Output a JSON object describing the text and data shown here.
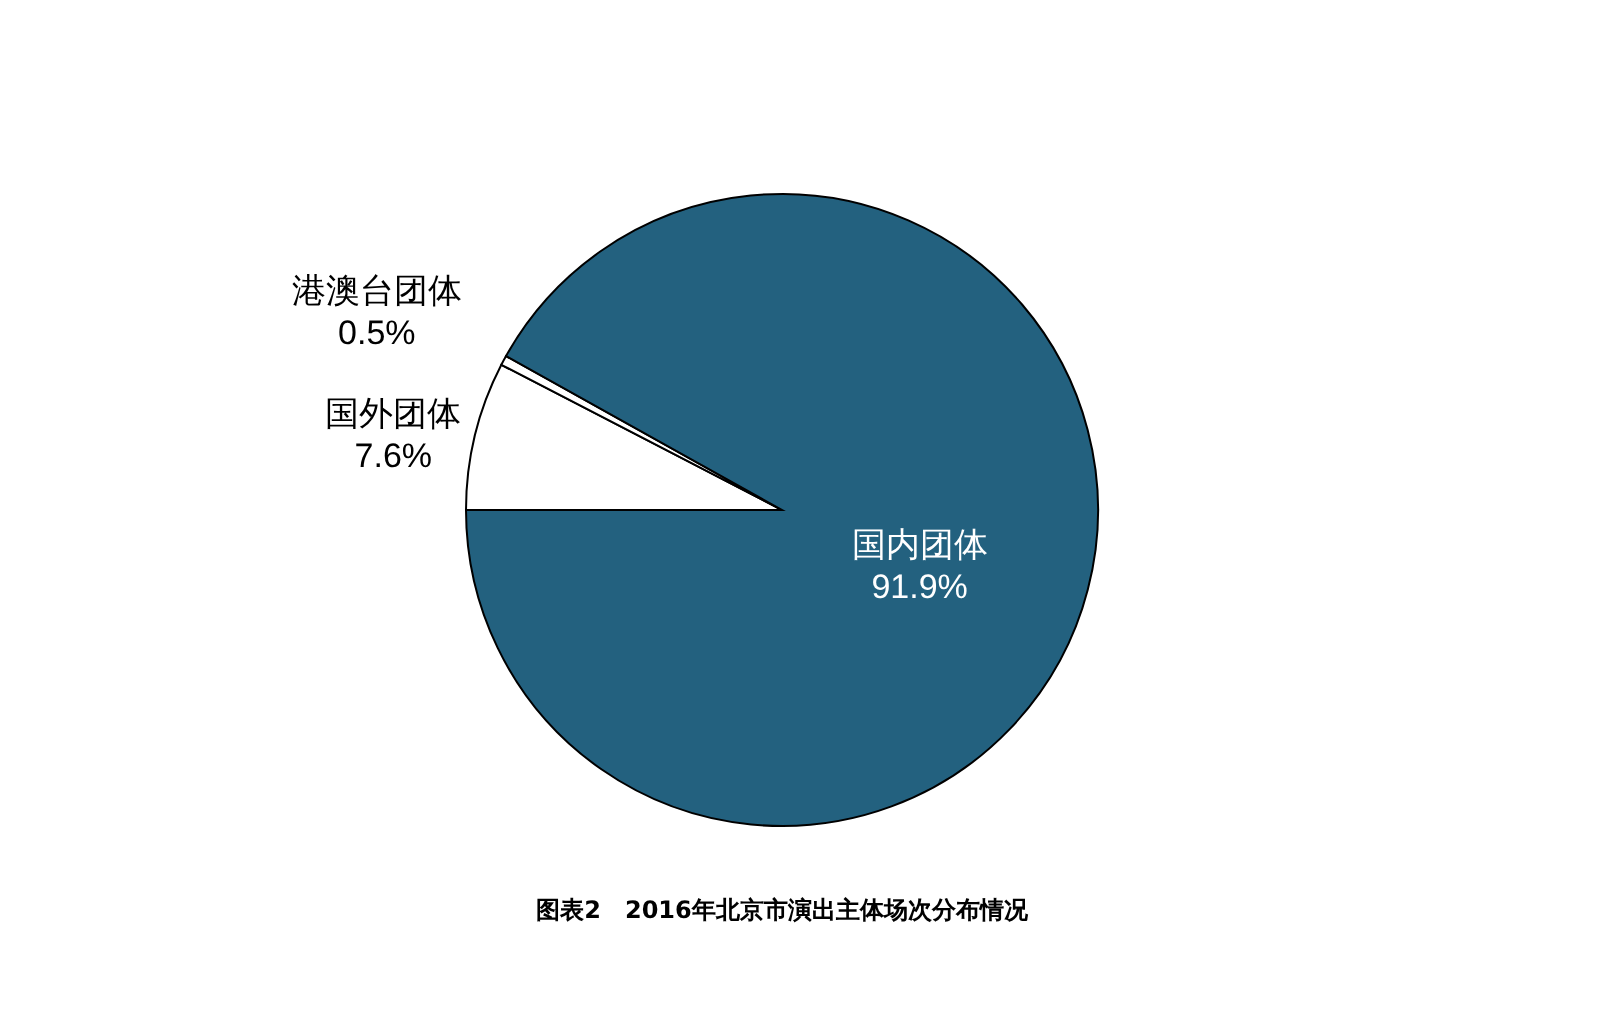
{
  "chart_data": {
    "type": "pie",
    "title": "图表2　2016年北京市演出主体场次分布情况",
    "categories": [
      "国外团体",
      "港澳台团体",
      "国内团体"
    ],
    "values": [
      7.6,
      0.5,
      91.9
    ],
    "colors": [
      "#ffffff",
      "#ffffff",
      "#23617f"
    ],
    "value_labels": [
      "7.6%",
      "0.5%",
      "91.9%"
    ]
  }
}
